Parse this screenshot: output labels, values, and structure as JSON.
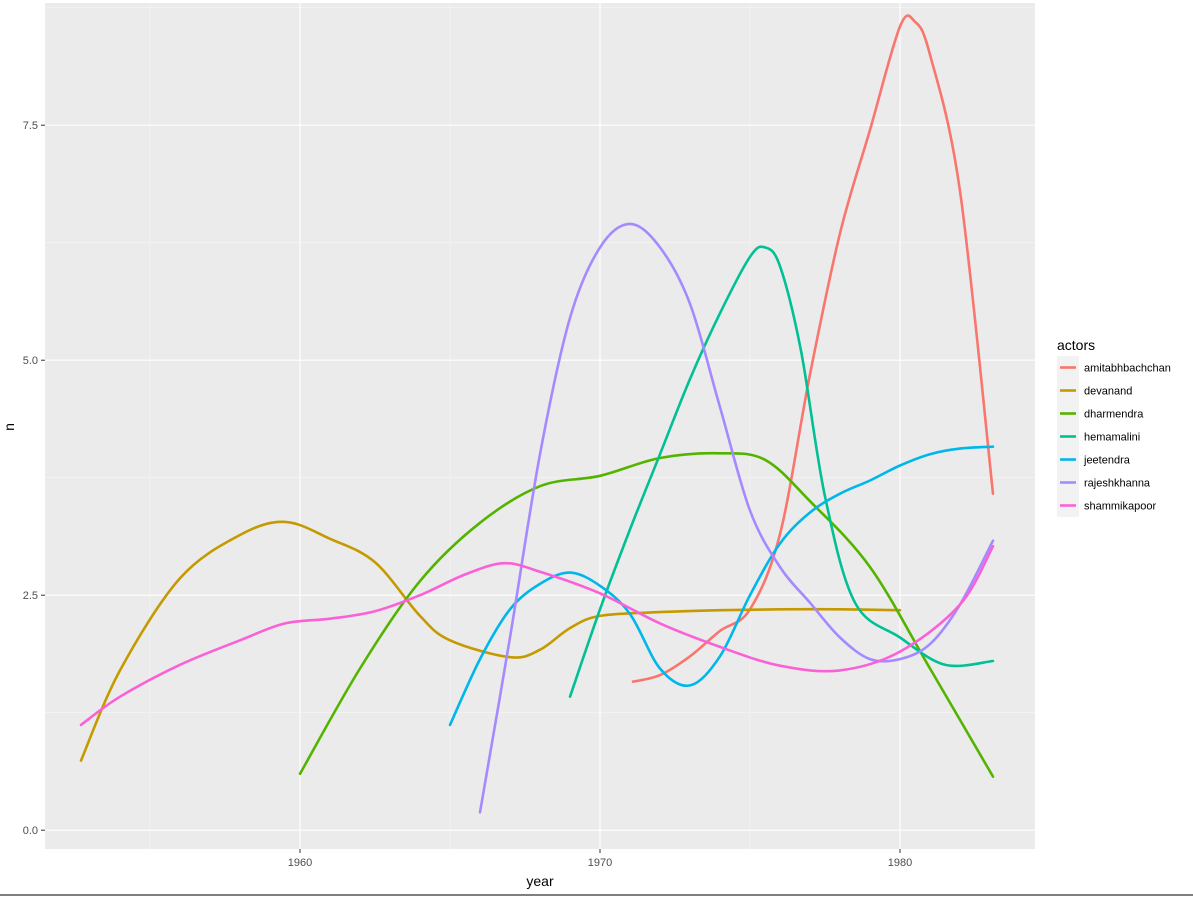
{
  "chart_data": {
    "type": "line",
    "title": "",
    "xlabel": "year",
    "ylabel": "n",
    "xlim": [
      1951.5,
      1984.5
    ],
    "ylim": [
      -0.2,
      8.8
    ],
    "x_ticks": [
      1960,
      1970,
      1980
    ],
    "x_tick_labels": [
      "1960",
      "1970",
      "1980"
    ],
    "y_ticks": [
      0,
      2.5,
      5,
      7.5
    ],
    "y_tick_labels": [
      "0.0",
      "2.5",
      "5.0",
      "7.5"
    ],
    "grid": true,
    "panel_background": "#ebebeb",
    "legend": {
      "title": "actors",
      "position": "right"
    },
    "series": [
      {
        "name": "amitabhbachchan",
        "color": "#F8766D",
        "x": [
          1971.1,
          1972,
          1973,
          1974,
          1975,
          1976,
          1977,
          1978,
          1979,
          1980,
          1980.5,
          1981,
          1982,
          1983.1
        ],
        "y": [
          1.58,
          1.65,
          1.85,
          2.12,
          2.35,
          3.15,
          4.85,
          6.35,
          7.45,
          8.55,
          8.6,
          8.25,
          6.8,
          3.58
        ]
      },
      {
        "name": "devanand",
        "color": "#C49A00",
        "x": [
          1952.7,
          1954,
          1956,
          1958,
          1959.5,
          1961,
          1962.5,
          1964,
          1965,
          1967,
          1968,
          1969,
          1970,
          1972,
          1974,
          1976,
          1978,
          1980
        ],
        "y": [
          0.74,
          1.7,
          2.68,
          3.14,
          3.28,
          3.1,
          2.85,
          2.28,
          2.02,
          1.84,
          1.92,
          2.15,
          2.28,
          2.32,
          2.34,
          2.35,
          2.35,
          2.34
        ]
      },
      {
        "name": "dharmendra",
        "color": "#53B400",
        "x": [
          1960,
          1962,
          1964,
          1966,
          1968,
          1970,
          1972,
          1974,
          1975.5,
          1977,
          1979,
          1981,
          1983.1
        ],
        "y": [
          0.6,
          1.72,
          2.65,
          3.27,
          3.66,
          3.77,
          3.96,
          4.01,
          3.94,
          3.5,
          2.8,
          1.72,
          0.57
        ]
      },
      {
        "name": "hemamalini",
        "color": "#00C094",
        "x": [
          1969,
          1970,
          1971,
          1972,
          1973,
          1974,
          1975,
          1975.5,
          1976,
          1976.7,
          1977.5,
          1978.5,
          1980,
          1981.5,
          1983.1
        ],
        "y": [
          1.42,
          2.35,
          3.2,
          4.0,
          4.8,
          5.5,
          6.1,
          6.2,
          6.0,
          5.1,
          3.55,
          2.42,
          2.05,
          1.76,
          1.8
        ]
      },
      {
        "name": "jeetendra",
        "color": "#00B6EB",
        "x": [
          1965,
          1966,
          1967,
          1968,
          1969,
          1970,
          1971,
          1972,
          1973,
          1974,
          1975,
          1976,
          1977,
          1978,
          1979,
          1980,
          1981,
          1982,
          1983.1
        ],
        "y": [
          1.12,
          1.82,
          2.35,
          2.62,
          2.74,
          2.6,
          2.3,
          1.72,
          1.54,
          1.85,
          2.5,
          3.05,
          3.38,
          3.58,
          3.72,
          3.88,
          4.0,
          4.06,
          4.08
        ]
      },
      {
        "name": "rajeshkhanna",
        "color": "#A58AFF",
        "x": [
          1966,
          1967,
          1968,
          1969,
          1970,
          1971,
          1972,
          1973,
          1974,
          1975,
          1976,
          1977,
          1978,
          1979,
          1980,
          1981,
          1982,
          1983.1
        ],
        "y": [
          0.19,
          2.05,
          4.0,
          5.45,
          6.2,
          6.45,
          6.2,
          5.6,
          4.5,
          3.4,
          2.8,
          2.42,
          2.05,
          1.82,
          1.82,
          1.98,
          2.4,
          3.08
        ]
      },
      {
        "name": "shammikapoor",
        "color": "#FB61D7",
        "x": [
          1952.7,
          1954,
          1956,
          1958,
          1959.5,
          1961,
          1962.5,
          1964,
          1965.5,
          1966.8,
          1968,
          1970,
          1972,
          1974,
          1976,
          1978,
          1980,
          1982,
          1983.1
        ],
        "y": [
          1.12,
          1.42,
          1.76,
          2.02,
          2.2,
          2.25,
          2.33,
          2.5,
          2.72,
          2.84,
          2.75,
          2.52,
          2.2,
          1.95,
          1.75,
          1.7,
          1.9,
          2.4,
          3.02
        ]
      }
    ]
  }
}
